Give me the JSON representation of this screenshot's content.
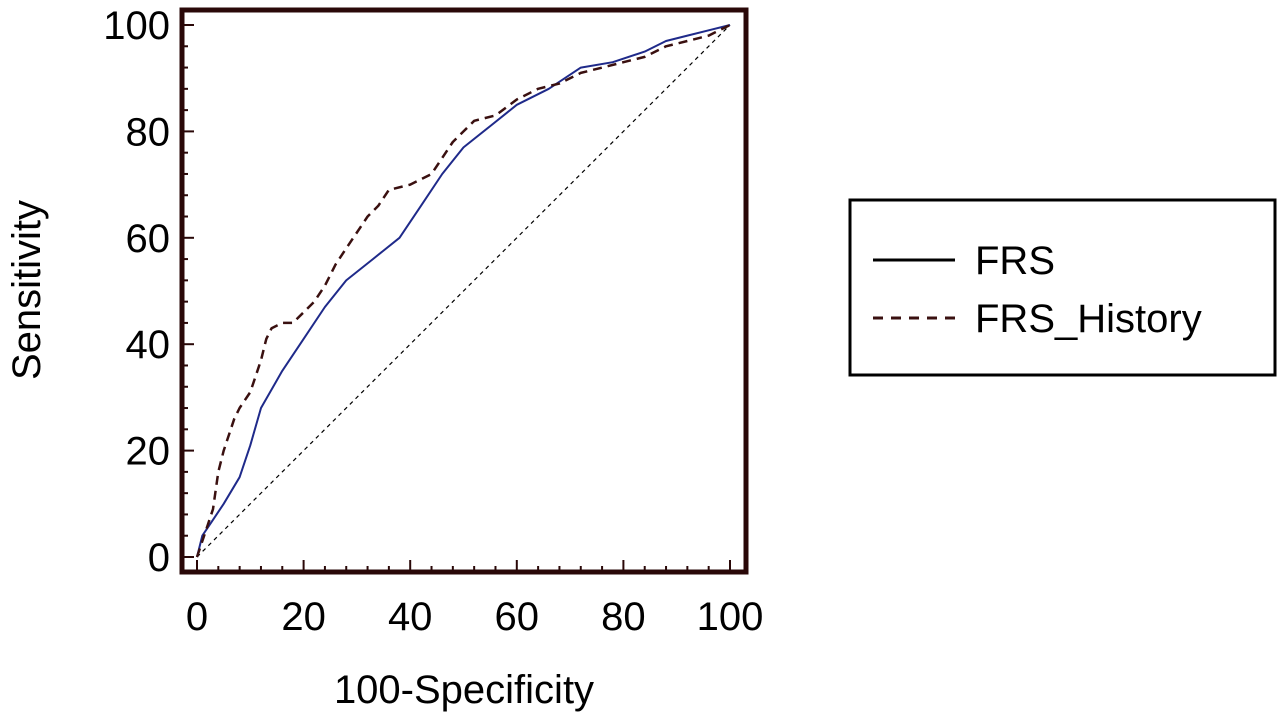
{
  "chart_data": {
    "type": "line",
    "title": "",
    "xlabel": "100-Specificity",
    "ylabel": "Sensitivity",
    "xlim": [
      0,
      100
    ],
    "ylim": [
      0,
      100
    ],
    "xticks": [
      0,
      20,
      40,
      60,
      80,
      100
    ],
    "yticks": [
      0,
      20,
      40,
      60,
      80,
      100
    ],
    "grid": false,
    "legend_position": "right",
    "series": [
      {
        "name": "FRS",
        "style": "solid",
        "color": "#1f2a8a",
        "x": [
          0,
          1,
          3,
          5,
          8,
          10,
          12,
          16,
          20,
          24,
          28,
          33,
          38,
          42,
          46,
          50,
          55,
          60,
          66,
          72,
          78,
          84,
          88,
          92,
          96,
          100
        ],
        "y": [
          0,
          4,
          7,
          10,
          15,
          21,
          28,
          35,
          41,
          47,
          52,
          56,
          60,
          66,
          72,
          77,
          81,
          85,
          88,
          92,
          93,
          95,
          97,
          98,
          99,
          100
        ]
      },
      {
        "name": "FRS_History",
        "style": "dashed",
        "color": "#3a1010",
        "x": [
          0,
          2,
          3,
          4,
          5,
          7,
          8,
          10,
          12,
          13,
          14,
          16,
          18,
          20,
          22,
          24,
          26,
          28,
          30,
          32,
          34,
          36,
          40,
          44,
          46,
          48,
          50,
          52,
          56,
          60,
          64,
          68,
          72,
          76,
          80,
          84,
          88,
          92,
          96,
          100
        ],
        "y": [
          0,
          6,
          9,
          16,
          20,
          26,
          28,
          31,
          37,
          41,
          43,
          44,
          44,
          46,
          48,
          51,
          55,
          58,
          61,
          64,
          66,
          69,
          70,
          72,
          75,
          78,
          80,
          82,
          83,
          86,
          88,
          89,
          91,
          92,
          93,
          94,
          96,
          97,
          98,
          100
        ]
      },
      {
        "name": "",
        "style": "reference",
        "color": "#000000",
        "x": [
          0,
          100
        ],
        "y": [
          0,
          100
        ]
      }
    ]
  }
}
